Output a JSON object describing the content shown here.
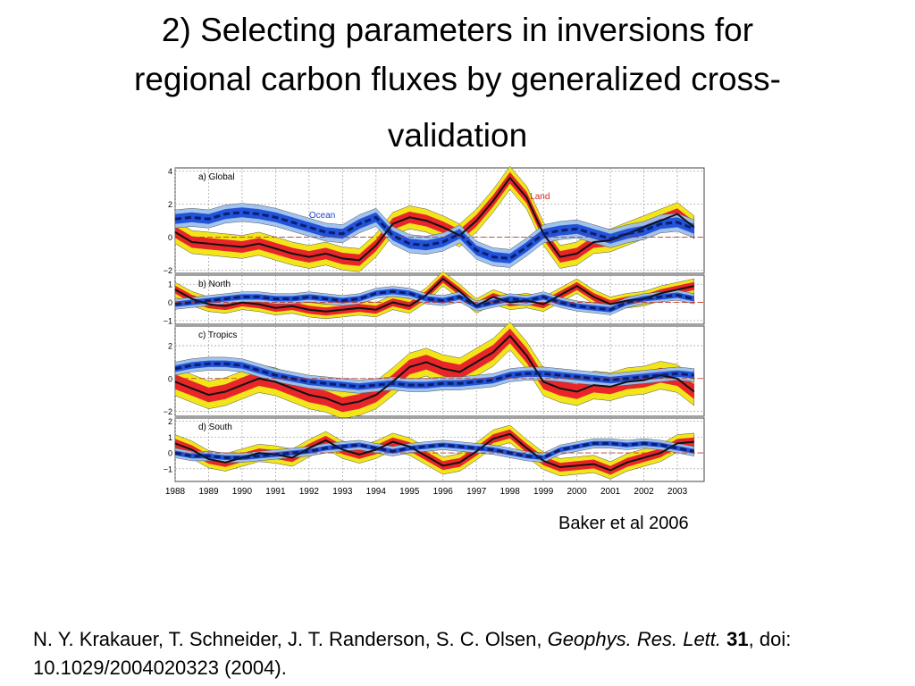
{
  "slide": {
    "title_line1": "2) Selecting parameters in inversions for",
    "title_line2": "regional carbon fluxes by generalized cross-",
    "title_line3": "validation",
    "credit": "Baker et al 2006",
    "citation": {
      "authors": "N. Y. Krakauer, T. Schneider, J. T. Randerson, S. C. Olsen, ",
      "journal": "Geophys. Res. Lett.",
      "volume": "31",
      "rest": ", doi: 10.1029/2004020323 (2004)."
    }
  },
  "colors": {
    "land_line": "#111111",
    "land_band_inner": "#e8262a",
    "land_band_outer": "#f2e61a",
    "ocean_line": "#0b1e6e",
    "ocean_band_inner": "#2253d8",
    "ocean_band_outer": "#9cc0ee",
    "zero_line": "#c0392b",
    "land_label": "#d0281e",
    "ocean_label": "#1a46c8"
  },
  "chart_data": {
    "type": "line",
    "x_ticks": [
      "1988",
      "1989",
      "1990",
      "1991",
      "1992",
      "1993",
      "1994",
      "1995",
      "1996",
      "1997",
      "1998",
      "1999",
      "2000",
      "2001",
      "2002",
      "2003"
    ],
    "xlim": [
      1988,
      2003.8
    ],
    "grid": true,
    "x": [
      1988.0,
      1988.5,
      1989.0,
      1989.5,
      1990.0,
      1990.5,
      1991.0,
      1991.5,
      1992.0,
      1992.5,
      1993.0,
      1993.5,
      1994.0,
      1994.5,
      1995.0,
      1995.5,
      1996.0,
      1996.5,
      1997.0,
      1997.5,
      1998.0,
      1998.5,
      1999.0,
      1999.5,
      2000.0,
      2000.5,
      2001.0,
      2001.5,
      2002.0,
      2002.5,
      2003.0,
      2003.5
    ],
    "panels": [
      {
        "label": "a) Global",
        "ylim": [
          -2.2,
          4.2
        ],
        "y_ticks": [
          "4",
          "2",
          "0",
          "−2"
        ],
        "y_tick_values": [
          4,
          2,
          0,
          -2
        ],
        "annotations": [
          {
            "text": "Ocean",
            "series": "Ocean"
          },
          {
            "text": "Land",
            "series": "Land"
          }
        ],
        "series": [
          {
            "name": "Land",
            "values": [
              0.3,
              -0.3,
              -0.4,
              -0.5,
              -0.6,
              -0.4,
              -0.7,
              -1.0,
              -1.2,
              -1.0,
              -1.3,
              -1.4,
              -0.5,
              0.8,
              1.2,
              1.0,
              0.6,
              0.1,
              1.0,
              2.2,
              3.6,
              2.4,
              0.2,
              -1.2,
              -1.0,
              -0.3,
              -0.2,
              0.2,
              0.6,
              1.0,
              1.4,
              0.6
            ],
            "band_inner": 0.35,
            "band_outer": 0.7
          },
          {
            "name": "Ocean",
            "values": [
              1.1,
              1.2,
              1.1,
              1.4,
              1.5,
              1.4,
              1.2,
              0.9,
              0.6,
              0.3,
              0.2,
              0.8,
              1.2,
              0.1,
              -0.4,
              -0.5,
              -0.3,
              0.2,
              -0.8,
              -1.2,
              -1.3,
              -0.6,
              0.2,
              0.4,
              0.5,
              0.2,
              -0.1,
              0.2,
              0.4,
              0.8,
              0.9,
              0.5
            ],
            "band_inner": 0.3,
            "band_outer": 0.55
          }
        ]
      },
      {
        "label": "b) North",
        "ylim": [
          -1.2,
          1.5
        ],
        "y_ticks": [
          "1",
          "0",
          "−1"
        ],
        "y_tick_values": [
          1,
          0,
          -1
        ],
        "series": [
          {
            "name": "Land",
            "values": [
              0.7,
              0.2,
              -0.1,
              -0.2,
              0.0,
              -0.1,
              -0.3,
              -0.2,
              -0.4,
              -0.5,
              -0.4,
              -0.3,
              -0.4,
              0.0,
              -0.2,
              0.4,
              1.3,
              0.6,
              -0.2,
              0.3,
              0.0,
              0.1,
              -0.1,
              0.4,
              0.9,
              0.3,
              -0.1,
              0.1,
              0.2,
              0.5,
              0.7,
              0.9
            ],
            "band_inner": 0.22,
            "band_outer": 0.4
          },
          {
            "name": "Ocean",
            "values": [
              -0.1,
              0.0,
              0.1,
              0.2,
              0.3,
              0.3,
              0.2,
              0.2,
              0.3,
              0.2,
              0.1,
              0.2,
              0.5,
              0.6,
              0.5,
              0.2,
              0.1,
              0.3,
              -0.2,
              0.0,
              0.2,
              0.1,
              0.3,
              0.0,
              -0.2,
              -0.3,
              -0.4,
              0.0,
              0.2,
              0.3,
              0.4,
              0.2
            ],
            "band_inner": 0.15,
            "band_outer": 0.28
          }
        ]
      },
      {
        "label": "c) Tropics",
        "ylim": [
          -2.3,
          3.2
        ],
        "y_ticks": [
          "2",
          "0",
          "−2"
        ],
        "y_tick_values": [
          2,
          0,
          -2
        ],
        "series": [
          {
            "name": "Land",
            "values": [
              -0.2,
              -0.6,
              -1.0,
              -0.8,
              -0.4,
              0.0,
              -0.2,
              -0.6,
              -1.0,
              -1.2,
              -1.6,
              -1.4,
              -1.0,
              -0.2,
              0.7,
              1.0,
              0.6,
              0.4,
              1.0,
              1.6,
              2.6,
              1.4,
              -0.2,
              -0.6,
              -0.8,
              -0.4,
              -0.5,
              -0.2,
              -0.1,
              0.2,
              0.0,
              -0.8
            ],
            "band_inner": 0.45,
            "band_outer": 0.85
          },
          {
            "name": "Ocean",
            "values": [
              0.6,
              0.8,
              0.9,
              0.9,
              0.8,
              0.5,
              0.2,
              0.0,
              -0.2,
              -0.3,
              -0.4,
              -0.5,
              -0.4,
              -0.3,
              -0.4,
              -0.4,
              -0.3,
              -0.3,
              -0.2,
              -0.1,
              0.2,
              0.3,
              0.3,
              0.2,
              0.1,
              0.0,
              -0.1,
              0.0,
              0.1,
              0.2,
              0.3,
              0.2
            ],
            "band_inner": 0.2,
            "band_outer": 0.4
          }
        ]
      },
      {
        "label": "d) South",
        "ylim": [
          -1.8,
          2.2
        ],
        "y_ticks": [
          "2",
          "1",
          "0",
          "−1"
        ],
        "y_tick_values": [
          2,
          1,
          0,
          -1
        ],
        "series": [
          {
            "name": "Land",
            "values": [
              0.6,
              0.2,
              -0.4,
              -0.6,
              -0.3,
              0.0,
              -0.1,
              -0.3,
              0.3,
              0.8,
              0.2,
              -0.1,
              0.2,
              0.7,
              0.4,
              -0.2,
              -0.8,
              -0.6,
              0.1,
              0.9,
              1.2,
              0.3,
              -0.5,
              -0.9,
              -0.8,
              -0.7,
              -1.1,
              -0.6,
              -0.3,
              0.0,
              0.6,
              0.7
            ],
            "band_inner": 0.28,
            "band_outer": 0.55
          },
          {
            "name": "Ocean",
            "values": [
              0.0,
              -0.2,
              -0.2,
              -0.3,
              -0.3,
              -0.2,
              -0.1,
              0.0,
              0.1,
              0.3,
              0.4,
              0.5,
              0.3,
              0.1,
              0.3,
              0.4,
              0.5,
              0.4,
              0.3,
              0.2,
              0.0,
              -0.2,
              -0.3,
              0.2,
              0.4,
              0.6,
              0.6,
              0.5,
              0.6,
              0.5,
              0.3,
              0.1
            ],
            "band_inner": 0.15,
            "band_outer": 0.3
          }
        ]
      }
    ]
  }
}
